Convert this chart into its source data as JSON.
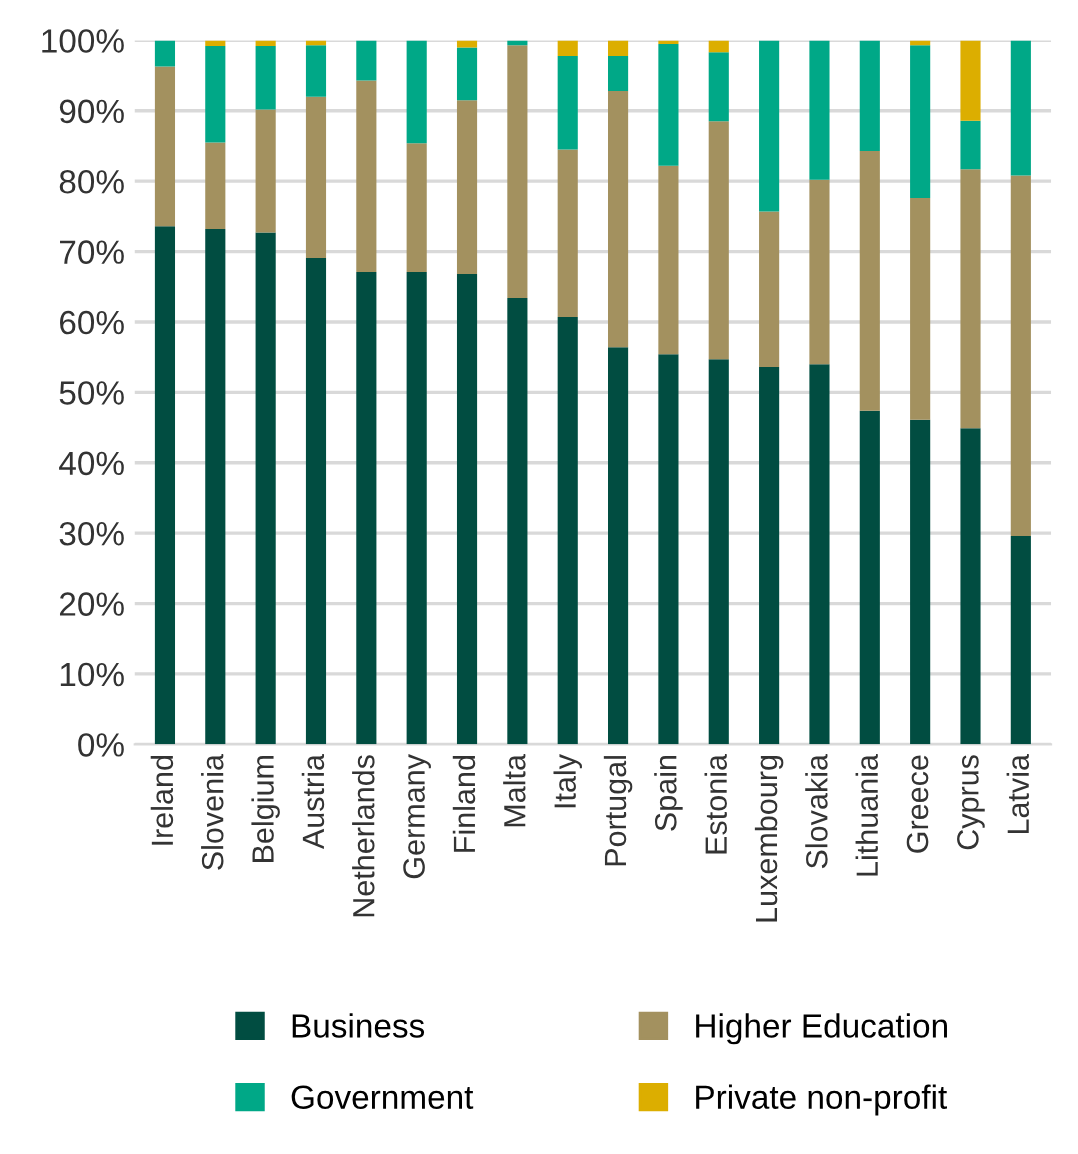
{
  "chart_data": {
    "type": "bar",
    "stacked": true,
    "categories": [
      "Ireland",
      "Slovenia",
      "Belgium",
      "Austria",
      "Netherlands",
      "Germany",
      "Finland",
      "Malta",
      "Italy",
      "Portugal",
      "Spain",
      "Estonia",
      "Luxembourg",
      "Slovakia",
      "Lithuania",
      "Greece",
      "Cyprus",
      "Latvia"
    ],
    "series": [
      {
        "name": "Business",
        "color": "#014d41",
        "values": [
          73.6,
          73.2,
          72.7,
          69.1,
          67.1,
          67.1,
          66.8,
          63.4,
          60.7,
          56.4,
          55.4,
          54.7,
          53.6,
          54.0,
          47.4,
          46.1,
          44.9,
          29.6
        ]
      },
      {
        "name": "Higher Education",
        "color": "#a3915f",
        "values": [
          22.7,
          12.3,
          17.5,
          22.9,
          27.2,
          18.3,
          24.7,
          35.9,
          23.8,
          36.4,
          26.8,
          33.8,
          22.1,
          26.2,
          36.9,
          31.5,
          36.8,
          51.2
        ]
      },
      {
        "name": "Government",
        "color": "#00a887",
        "values": [
          3.7,
          13.7,
          9.0,
          7.3,
          5.7,
          14.6,
          7.5,
          0.7,
          13.3,
          5.0,
          17.3,
          9.8,
          24.3,
          19.8,
          15.7,
          21.7,
          6.9,
          19.2
        ]
      },
      {
        "name": "Private non-profit",
        "color": "#dcae00",
        "values": [
          0,
          0.8,
          0.8,
          0.7,
          0,
          0,
          1.0,
          0,
          2.2,
          2.2,
          0.5,
          1.7,
          0,
          0,
          0,
          0.7,
          11.4,
          0
        ]
      }
    ],
    "ylim": [
      0,
      100
    ],
    "yticks": [
      {
        "value": 0,
        "label": "0%"
      },
      {
        "value": 10,
        "label": "10%"
      },
      {
        "value": 20,
        "label": "20%"
      },
      {
        "value": 30,
        "label": "30%"
      },
      {
        "value": 40,
        "label": "40%"
      },
      {
        "value": 50,
        "label": "50%"
      },
      {
        "value": 60,
        "label": "60%"
      },
      {
        "value": 70,
        "label": "70%"
      },
      {
        "value": 80,
        "label": "80%"
      },
      {
        "value": 90,
        "label": "90%"
      },
      {
        "value": 100,
        "label": "100%"
      }
    ],
    "grid": "y",
    "legend": "bottom"
  }
}
